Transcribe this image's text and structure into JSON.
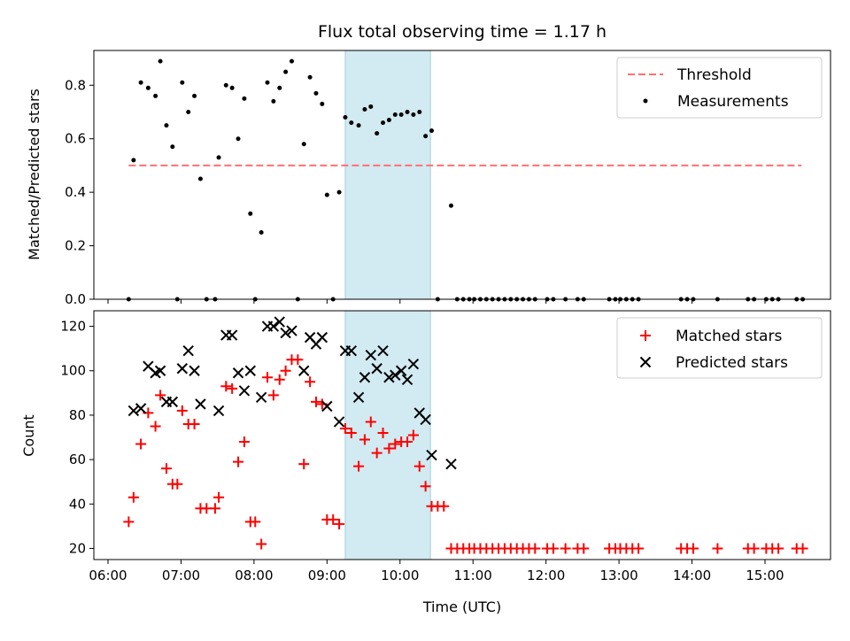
{
  "chart_data": {
    "type": "scatter",
    "title": "Flux total observing time = 1.17 h",
    "xlabel": "Time (UTC)",
    "x_ticks": [
      "06:00",
      "07:00",
      "08:00",
      "09:00",
      "10:00",
      "11:00",
      "12:00",
      "13:00",
      "14:00",
      "15:00"
    ],
    "highlight_span": {
      "start": "09:15",
      "end": "10:25",
      "color": "#add8e6"
    },
    "top": {
      "ylabel": "Matched/Predicted stars",
      "ylim": [
        0,
        0.93
      ],
      "y_ticks": [
        "0.0",
        "0.2",
        "0.4",
        "0.6",
        "0.8"
      ],
      "legend_position": "top-right",
      "threshold": {
        "name": "Threshold",
        "value": 0.5,
        "x_start": "06:17",
        "x_end": "15:30",
        "color": "#ff7070"
      },
      "measurements": {
        "name": "Measurements",
        "color": "#000000",
        "points": [
          [
            "06:17",
            0.0
          ],
          [
            "06:21",
            0.52
          ],
          [
            "06:27",
            0.81
          ],
          [
            "06:33",
            0.79
          ],
          [
            "06:39",
            0.76
          ],
          [
            "06:43",
            0.89
          ],
          [
            "06:48",
            0.65
          ],
          [
            "06:53",
            0.57
          ],
          [
            "06:57",
            0.0
          ],
          [
            "07:01",
            0.81
          ],
          [
            "07:06",
            0.7
          ],
          [
            "07:11",
            0.76
          ],
          [
            "07:16",
            0.45
          ],
          [
            "07:21",
            0.0
          ],
          [
            "07:28",
            0.0
          ],
          [
            "07:31",
            0.53
          ],
          [
            "07:37",
            0.8
          ],
          [
            "07:42",
            0.79
          ],
          [
            "07:47",
            0.6
          ],
          [
            "07:52",
            0.75
          ],
          [
            "07:57",
            0.32
          ],
          [
            "08:01",
            0.0
          ],
          [
            "08:06",
            0.25
          ],
          [
            "08:11",
            0.81
          ],
          [
            "08:16",
            0.74
          ],
          [
            "08:21",
            0.79
          ],
          [
            "08:26",
            0.85
          ],
          [
            "08:31",
            0.89
          ],
          [
            "08:36",
            0.0
          ],
          [
            "08:41",
            0.58
          ],
          [
            "08:46",
            0.83
          ],
          [
            "08:51",
            0.77
          ],
          [
            "08:56",
            0.73
          ],
          [
            "09:00",
            0.39
          ],
          [
            "09:05",
            0.0
          ],
          [
            "09:10",
            0.4
          ],
          [
            "09:15",
            0.68
          ],
          [
            "09:20",
            0.66
          ],
          [
            "09:26",
            0.65
          ],
          [
            "09:31",
            0.71
          ],
          [
            "09:36",
            0.72
          ],
          [
            "09:41",
            0.62
          ],
          [
            "09:46",
            0.66
          ],
          [
            "09:51",
            0.67
          ],
          [
            "09:56",
            0.69
          ],
          [
            "10:01",
            0.69
          ],
          [
            "10:06",
            0.7
          ],
          [
            "10:11",
            0.69
          ],
          [
            "10:16",
            0.7
          ],
          [
            "10:21",
            0.61
          ],
          [
            "10:26",
            0.63
          ],
          [
            "10:31",
            0.0
          ],
          [
            "10:42",
            0.35
          ],
          [
            "10:47",
            0.0
          ],
          [
            "10:52",
            0.0
          ],
          [
            "10:57",
            0.0
          ],
          [
            "11:01",
            0.0
          ],
          [
            "11:06",
            0.0
          ],
          [
            "11:11",
            0.0
          ],
          [
            "11:16",
            0.0
          ],
          [
            "11:21",
            0.0
          ],
          [
            "11:26",
            0.0
          ],
          [
            "11:31",
            0.0
          ],
          [
            "11:36",
            0.0
          ],
          [
            "11:41",
            0.0
          ],
          [
            "11:46",
            0.0
          ],
          [
            "11:51",
            0.0
          ],
          [
            "12:01",
            0.0
          ],
          [
            "12:06",
            0.0
          ],
          [
            "12:16",
            0.0
          ],
          [
            "12:26",
            0.0
          ],
          [
            "12:31",
            0.0
          ],
          [
            "12:52",
            0.0
          ],
          [
            "12:57",
            0.0
          ],
          [
            "13:01",
            0.0
          ],
          [
            "13:06",
            0.0
          ],
          [
            "13:11",
            0.0
          ],
          [
            "13:16",
            0.0
          ],
          [
            "13:51",
            0.0
          ],
          [
            "13:56",
            0.0
          ],
          [
            "14:01",
            0.0
          ],
          [
            "14:21",
            0.0
          ],
          [
            "14:46",
            0.0
          ],
          [
            "14:51",
            0.0
          ],
          [
            "15:01",
            0.0
          ],
          [
            "15:06",
            0.0
          ],
          [
            "15:11",
            0.0
          ],
          [
            "15:26",
            0.0
          ],
          [
            "15:31",
            0.0
          ]
        ]
      }
    },
    "bottom": {
      "ylabel": "Count",
      "ylim": [
        15,
        127
      ],
      "y_ticks": [
        "20",
        "40",
        "60",
        "80",
        "100",
        "120"
      ],
      "legend_position": "top-right",
      "series": [
        {
          "name": "Matched stars",
          "marker": "plus",
          "color": "#ff0000",
          "points": [
            [
              "06:17",
              32
            ],
            [
              "06:21",
              43
            ],
            [
              "06:27",
              67
            ],
            [
              "06:33",
              81
            ],
            [
              "06:39",
              75
            ],
            [
              "06:43",
              89
            ],
            [
              "06:48",
              56
            ],
            [
              "06:53",
              49
            ],
            [
              "06:57",
              49
            ],
            [
              "07:01",
              82
            ],
            [
              "07:06",
              76
            ],
            [
              "07:11",
              76
            ],
            [
              "07:16",
              38
            ],
            [
              "07:21",
              38
            ],
            [
              "07:28",
              38
            ],
            [
              "07:31",
              43
            ],
            [
              "07:37",
              93
            ],
            [
              "07:42",
              92
            ],
            [
              "07:47",
              59
            ],
            [
              "07:52",
              68
            ],
            [
              "07:57",
              32
            ],
            [
              "08:01",
              32
            ],
            [
              "08:06",
              22
            ],
            [
              "08:11",
              97
            ],
            [
              "08:16",
              89
            ],
            [
              "08:21",
              96
            ],
            [
              "08:26",
              100
            ],
            [
              "08:31",
              105
            ],
            [
              "08:36",
              105
            ],
            [
              "08:41",
              58
            ],
            [
              "08:46",
              95
            ],
            [
              "08:51",
              86
            ],
            [
              "08:56",
              85
            ],
            [
              "09:00",
              33
            ],
            [
              "09:05",
              33
            ],
            [
              "09:10",
              31
            ],
            [
              "09:15",
              74
            ],
            [
              "09:20",
              72
            ],
            [
              "09:26",
              57
            ],
            [
              "09:31",
              69
            ],
            [
              "09:36",
              77
            ],
            [
              "09:41",
              63
            ],
            [
              "09:46",
              72
            ],
            [
              "09:51",
              65
            ],
            [
              "09:56",
              67
            ],
            [
              "10:01",
              68
            ],
            [
              "10:06",
              68
            ],
            [
              "10:11",
              71
            ],
            [
              "10:16",
              57
            ],
            [
              "10:21",
              48
            ],
            [
              "10:26",
              39
            ],
            [
              "10:31",
              39
            ],
            [
              "10:36",
              39
            ],
            [
              "10:42",
              20
            ],
            [
              "10:47",
              20
            ],
            [
              "10:52",
              20
            ],
            [
              "10:57",
              20
            ],
            [
              "11:01",
              20
            ],
            [
              "11:06",
              20
            ],
            [
              "11:11",
              20
            ],
            [
              "11:16",
              20
            ],
            [
              "11:21",
              20
            ],
            [
              "11:26",
              20
            ],
            [
              "11:31",
              20
            ],
            [
              "11:36",
              20
            ],
            [
              "11:41",
              20
            ],
            [
              "11:46",
              20
            ],
            [
              "11:51",
              20
            ],
            [
              "12:01",
              20
            ],
            [
              "12:06",
              20
            ],
            [
              "12:16",
              20
            ],
            [
              "12:26",
              20
            ],
            [
              "12:31",
              20
            ],
            [
              "12:52",
              20
            ],
            [
              "12:57",
              20
            ],
            [
              "13:01",
              20
            ],
            [
              "13:06",
              20
            ],
            [
              "13:11",
              20
            ],
            [
              "13:16",
              20
            ],
            [
              "13:51",
              20
            ],
            [
              "13:56",
              20
            ],
            [
              "14:01",
              20
            ],
            [
              "14:21",
              20
            ],
            [
              "14:46",
              20
            ],
            [
              "14:51",
              20
            ],
            [
              "15:01",
              20
            ],
            [
              "15:06",
              20
            ],
            [
              "15:11",
              20
            ],
            [
              "15:26",
              20
            ],
            [
              "15:31",
              20
            ]
          ]
        },
        {
          "name": "Predicted stars",
          "marker": "x",
          "color": "#000000",
          "points": [
            [
              "06:21",
              82
            ],
            [
              "06:27",
              83
            ],
            [
              "06:33",
              102
            ],
            [
              "06:39",
              99
            ],
            [
              "06:43",
              100
            ],
            [
              "06:48",
              86
            ],
            [
              "06:53",
              86
            ],
            [
              "07:01",
              101
            ],
            [
              "07:06",
              109
            ],
            [
              "07:11",
              100
            ],
            [
              "07:16",
              85
            ],
            [
              "07:31",
              82
            ],
            [
              "07:37",
              116
            ],
            [
              "07:42",
              116
            ],
            [
              "07:47",
              99
            ],
            [
              "07:52",
              91
            ],
            [
              "07:57",
              100
            ],
            [
              "08:06",
              88
            ],
            [
              "08:11",
              120
            ],
            [
              "08:16",
              120
            ],
            [
              "08:21",
              122
            ],
            [
              "08:26",
              117
            ],
            [
              "08:31",
              118
            ],
            [
              "08:41",
              100
            ],
            [
              "08:46",
              115
            ],
            [
              "08:51",
              112
            ],
            [
              "08:56",
              115
            ],
            [
              "09:00",
              84
            ],
            [
              "09:10",
              77
            ],
            [
              "09:15",
              109
            ],
            [
              "09:20",
              109
            ],
            [
              "09:26",
              88
            ],
            [
              "09:31",
              97
            ],
            [
              "09:36",
              107
            ],
            [
              "09:41",
              101
            ],
            [
              "09:46",
              109
            ],
            [
              "09:51",
              97
            ],
            [
              "09:56",
              98
            ],
            [
              "10:01",
              100
            ],
            [
              "10:06",
              96
            ],
            [
              "10:11",
              103
            ],
            [
              "10:16",
              81
            ],
            [
              "10:21",
              78
            ],
            [
              "10:26",
              62
            ],
            [
              "10:42",
              58
            ]
          ]
        }
      ]
    }
  }
}
